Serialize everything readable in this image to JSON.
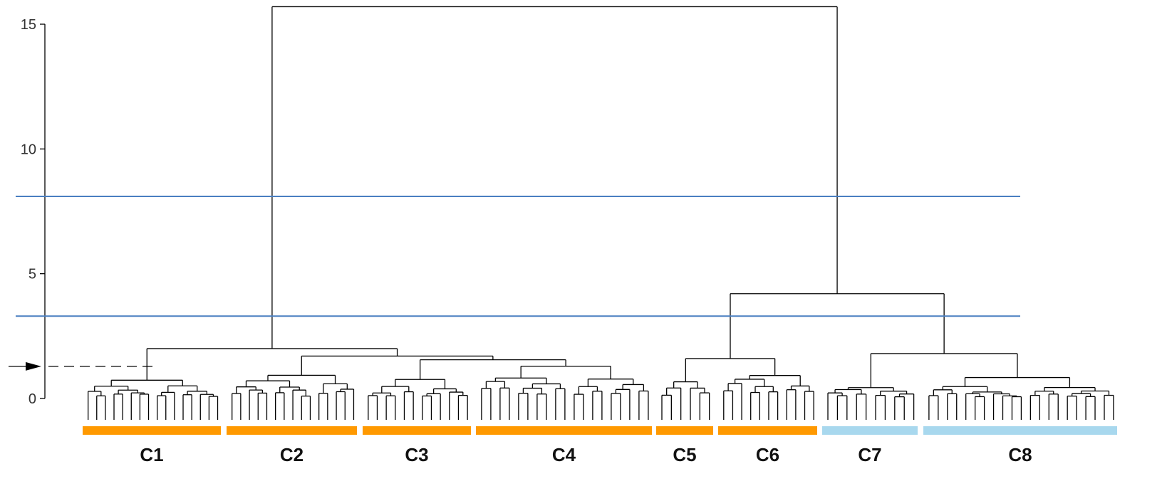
{
  "chart_data": {
    "type": "dendrogram",
    "title": "",
    "xlabel": "",
    "ylabel": "",
    "ylim": [
      0,
      15.7
    ],
    "y_ticks": [
      "0",
      "5",
      "10",
      "15"
    ],
    "y_tick_values": [
      0,
      5,
      10,
      15
    ],
    "reference_lines": [
      {
        "y": 8.1,
        "color": "#4a7fc1"
      },
      {
        "y": 3.3,
        "color": "#4a7fc1"
      }
    ],
    "cut_marker": {
      "y": 1.4,
      "style": "dashed-arrow"
    },
    "merge_heights": {
      "root": 15.7,
      "left_group_C1_to_C4": 2.0,
      "right_group_C5_to_C8": 4.2,
      "C5_C6": 1.6,
      "C7_C8": 1.8,
      "C1_C2": 1.9,
      "C2_C3_C4": 1.7
    },
    "clusters": [
      {
        "label": "C1",
        "color": "#ff9900",
        "leaves": 16
      },
      {
        "label": "C2",
        "color": "#ff9900",
        "leaves": 15
      },
      {
        "label": "C3",
        "color": "#ff9900",
        "leaves": 12
      },
      {
        "label": "C4",
        "color": "#ff9900",
        "leaves": 19
      },
      {
        "label": "C5",
        "color": "#ff9900",
        "leaves": 6
      },
      {
        "label": "C6",
        "color": "#ff9900",
        "leaves": 11
      },
      {
        "label": "C7",
        "color": "#a8d8ee",
        "leaves": 10
      },
      {
        "label": "C8",
        "color": "#a8d8ee",
        "leaves": 21
      }
    ]
  }
}
